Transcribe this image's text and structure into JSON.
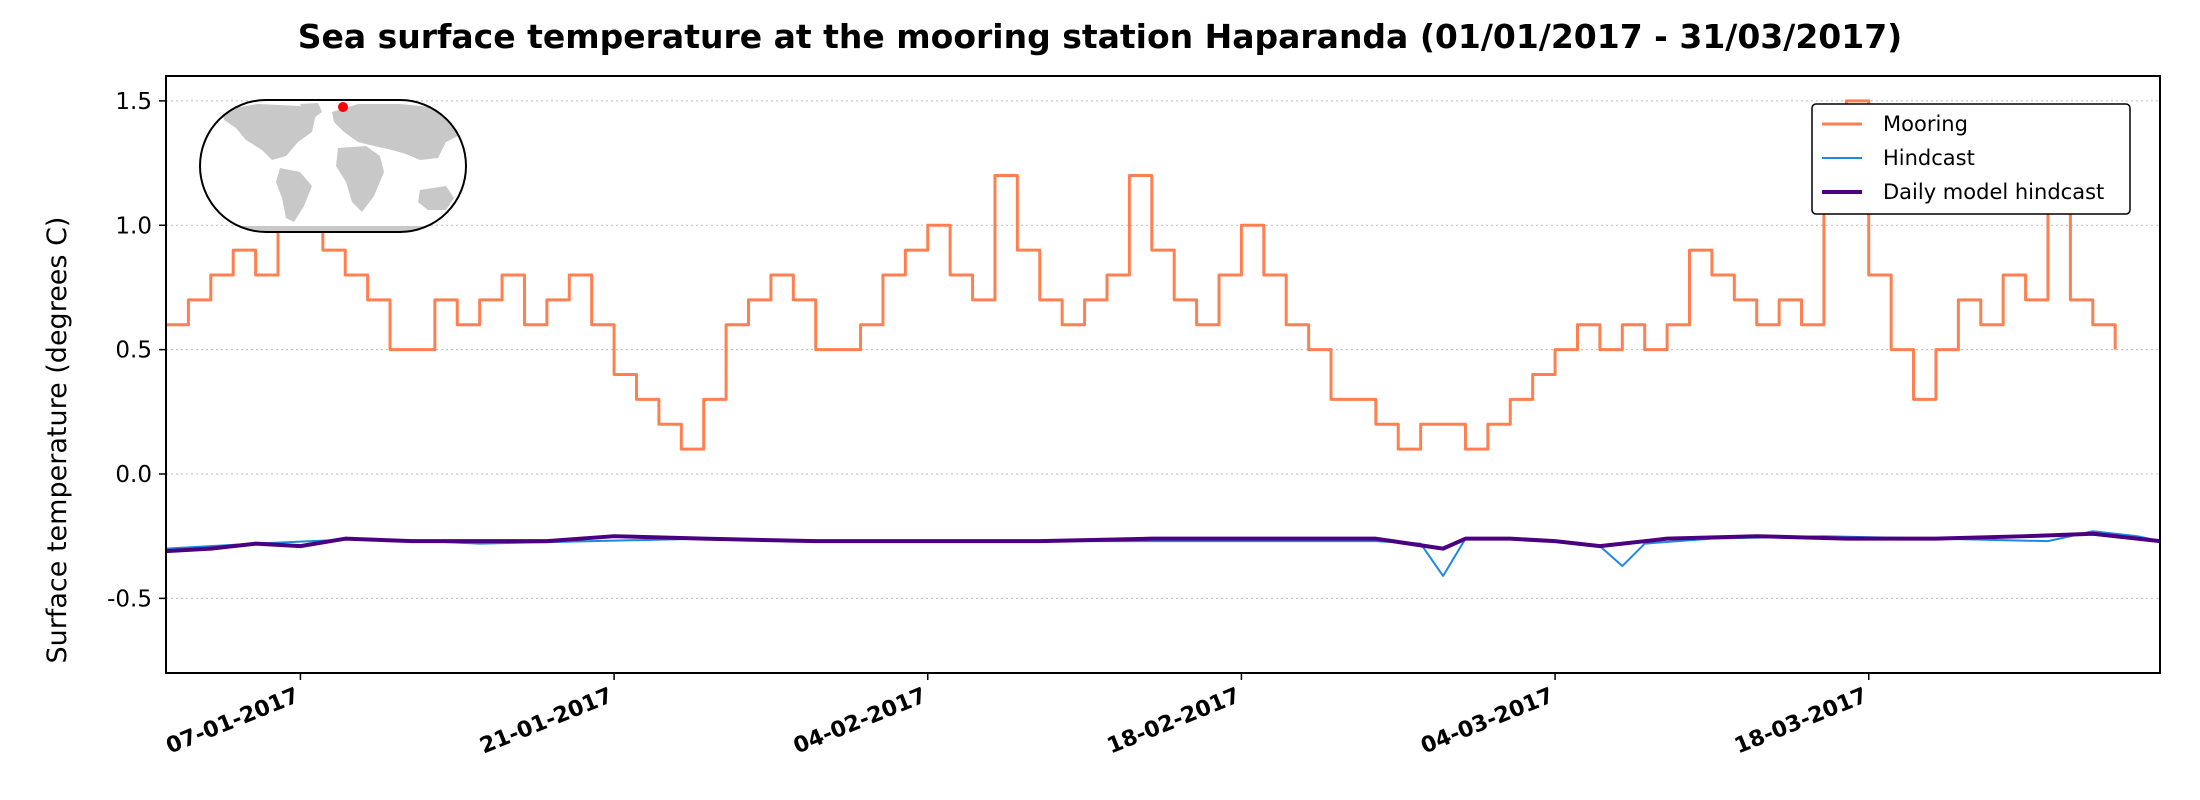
{
  "chart_data": {
    "type": "line",
    "title": "Sea surface temperature at the mooring station Haparanda (01/01/2017 - 31/03/2017)",
    "xlabel": "",
    "ylabel": "Surface temperature (degrees C)",
    "x_range": [
      "2017-01-01",
      "2017-03-31"
    ],
    "ylim": [
      -0.8,
      1.6
    ],
    "y_ticks": [
      -0.5,
      0.0,
      0.5,
      1.0,
      1.5
    ],
    "y_tick_labels": [
      "-0.5",
      "0.0",
      "0.5",
      "1.0",
      "1.5"
    ],
    "x_ticks": [
      "2017-01-07",
      "2017-01-21",
      "2017-02-04",
      "2017-02-18",
      "2017-03-04",
      "2017-03-18"
    ],
    "x_tick_labels": [
      "07-01-2017",
      "21-01-2017",
      "04-02-2017",
      "18-02-2017",
      "04-03-2017",
      "18-03-2017"
    ],
    "grid": "horizontal-dotted",
    "legend_position": "top-right",
    "inset": "world-map-location",
    "series": [
      {
        "name": "Mooring",
        "color": "#ff7f50",
        "x": [
          "2017-01-01",
          "2017-01-02",
          "2017-01-03",
          "2017-01-04",
          "2017-01-05",
          "2017-01-06",
          "2017-01-07",
          "2017-01-08",
          "2017-01-09",
          "2017-01-10",
          "2017-01-11",
          "2017-01-12",
          "2017-01-13",
          "2017-01-14",
          "2017-01-15",
          "2017-01-16",
          "2017-01-17",
          "2017-01-18",
          "2017-01-19",
          "2017-01-20",
          "2017-01-21",
          "2017-01-22",
          "2017-01-23",
          "2017-01-24",
          "2017-01-25",
          "2017-01-26",
          "2017-01-27",
          "2017-01-28",
          "2017-01-29",
          "2017-01-30",
          "2017-01-31",
          "2017-02-01",
          "2017-02-02",
          "2017-02-03",
          "2017-02-04",
          "2017-02-05",
          "2017-02-06",
          "2017-02-07",
          "2017-02-08",
          "2017-02-09",
          "2017-02-10",
          "2017-02-11",
          "2017-02-12",
          "2017-02-13",
          "2017-02-14",
          "2017-02-15",
          "2017-02-16",
          "2017-02-17",
          "2017-02-18",
          "2017-02-19",
          "2017-02-20",
          "2017-02-21",
          "2017-02-22",
          "2017-02-23",
          "2017-02-24",
          "2017-02-25",
          "2017-02-26",
          "2017-02-27",
          "2017-02-28",
          "2017-03-01",
          "2017-03-02",
          "2017-03-03",
          "2017-03-04",
          "2017-03-05",
          "2017-03-06",
          "2017-03-07",
          "2017-03-08",
          "2017-03-09",
          "2017-03-10",
          "2017-03-11",
          "2017-03-12",
          "2017-03-13",
          "2017-03-14",
          "2017-03-15",
          "2017-03-16",
          "2017-03-17",
          "2017-03-18",
          "2017-03-19",
          "2017-03-20",
          "2017-03-21",
          "2017-03-22",
          "2017-03-23",
          "2017-03-24",
          "2017-03-25",
          "2017-03-26",
          "2017-03-27",
          "2017-03-28",
          "2017-03-29"
        ],
        "values": [
          0.6,
          0.7,
          0.8,
          0.9,
          0.8,
          1.0,
          1.1,
          0.9,
          0.8,
          0.7,
          0.5,
          0.5,
          0.7,
          0.6,
          0.7,
          0.8,
          0.6,
          0.7,
          0.8,
          0.6,
          0.4,
          0.3,
          0.2,
          0.1,
          0.3,
          0.6,
          0.7,
          0.8,
          0.7,
          0.5,
          0.5,
          0.6,
          0.8,
          0.9,
          1.0,
          0.8,
          0.7,
          1.2,
          0.9,
          0.7,
          0.6,
          0.7,
          0.8,
          1.2,
          0.9,
          0.7,
          0.6,
          0.8,
          1.0,
          0.8,
          0.6,
          0.5,
          0.3,
          0.3,
          0.2,
          0.1,
          0.2,
          0.2,
          0.1,
          0.2,
          0.3,
          0.4,
          0.5,
          0.6,
          0.5,
          0.6,
          0.5,
          0.6,
          0.9,
          0.8,
          0.7,
          0.6,
          0.7,
          0.6,
          1.1,
          1.5,
          0.8,
          0.5,
          0.3,
          0.5,
          0.7,
          0.6,
          0.8,
          0.7,
          1.2,
          0.7,
          0.6,
          0.5
        ]
      },
      {
        "name": "Hindcast",
        "color": "#1e88e5",
        "x": [
          "2017-01-01",
          "2017-01-05",
          "2017-01-10",
          "2017-01-15",
          "2017-01-20",
          "2017-01-25",
          "2017-01-30",
          "2017-02-04",
          "2017-02-09",
          "2017-02-14",
          "2017-02-19",
          "2017-02-24",
          "2017-02-26",
          "2017-02-27",
          "2017-02-28",
          "2017-03-01",
          "2017-03-04",
          "2017-03-06",
          "2017-03-07",
          "2017-03-08",
          "2017-03-11",
          "2017-03-16",
          "2017-03-21",
          "2017-03-26",
          "2017-03-28",
          "2017-03-30",
          "2017-03-31"
        ],
        "values": [
          -0.3,
          -0.28,
          -0.26,
          -0.28,
          -0.27,
          -0.26,
          -0.27,
          -0.27,
          -0.27,
          -0.27,
          -0.27,
          -0.27,
          -0.28,
          -0.41,
          -0.26,
          -0.26,
          -0.27,
          -0.29,
          -0.37,
          -0.28,
          -0.26,
          -0.25,
          -0.26,
          -0.27,
          -0.23,
          -0.25,
          -0.27
        ]
      },
      {
        "name": "Daily model hindcast",
        "color": "#4b0082",
        "x": [
          "2017-01-01",
          "2017-01-03",
          "2017-01-05",
          "2017-01-07",
          "2017-01-09",
          "2017-01-12",
          "2017-01-15",
          "2017-01-18",
          "2017-01-21",
          "2017-01-25",
          "2017-01-30",
          "2017-02-04",
          "2017-02-09",
          "2017-02-14",
          "2017-02-19",
          "2017-02-24",
          "2017-02-27",
          "2017-02-28",
          "2017-03-02",
          "2017-03-04",
          "2017-03-06",
          "2017-03-09",
          "2017-03-13",
          "2017-03-17",
          "2017-03-21",
          "2017-03-25",
          "2017-03-28",
          "2017-03-31"
        ],
        "values": [
          -0.31,
          -0.3,
          -0.28,
          -0.29,
          -0.26,
          -0.27,
          -0.27,
          -0.27,
          -0.25,
          -0.26,
          -0.27,
          -0.27,
          -0.27,
          -0.26,
          -0.26,
          -0.26,
          -0.3,
          -0.26,
          -0.26,
          -0.27,
          -0.29,
          -0.26,
          -0.25,
          -0.26,
          -0.26,
          -0.25,
          -0.24,
          -0.27
        ]
      }
    ]
  },
  "colors": {
    "inset_land": "#c8c8c8",
    "station_marker": "#ff0000",
    "grid": "#bbbbbb"
  }
}
